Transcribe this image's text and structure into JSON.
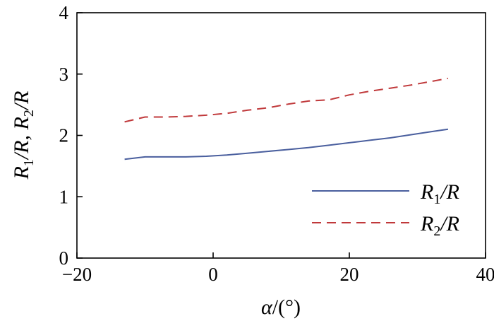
{
  "chart_data": {
    "type": "line",
    "xlabel": "α/(°)",
    "ylabel": "R1/R, R2/R",
    "xlim": [
      -20,
      40
    ],
    "ylim": [
      0,
      4
    ],
    "x_ticks": [
      -20,
      0,
      20,
      40
    ],
    "y_ticks": [
      0,
      1,
      2,
      3,
      4
    ],
    "x_tick_labels": [
      "−20",
      "0",
      "20",
      "40"
    ],
    "y_tick_labels": [
      "0",
      "1",
      "2",
      "3",
      "4"
    ],
    "grid": false,
    "legend_position": "bottom-right",
    "series": [
      {
        "name": "R1/R",
        "color": "#4a5f9e",
        "line_style": "solid",
        "x": [
          -13,
          -10,
          -7,
          -4,
          -1,
          2,
          5,
          8,
          11,
          14,
          17,
          20,
          23,
          26,
          29,
          32,
          34.5
        ],
        "y": [
          1.61,
          1.65,
          1.65,
          1.65,
          1.66,
          1.68,
          1.71,
          1.74,
          1.77,
          1.8,
          1.84,
          1.88,
          1.92,
          1.96,
          2.01,
          2.06,
          2.1
        ]
      },
      {
        "name": "R2/R",
        "color": "#c0393b",
        "line_style": "dashed",
        "x": [
          -13,
          -10,
          -7,
          -4,
          -1,
          2,
          5,
          8,
          11,
          14,
          17,
          20,
          23,
          26,
          29,
          32,
          34.5
        ],
        "y": [
          2.22,
          2.3,
          2.3,
          2.31,
          2.33,
          2.36,
          2.41,
          2.45,
          2.51,
          2.56,
          2.58,
          2.66,
          2.72,
          2.77,
          2.82,
          2.88,
          2.93
        ]
      }
    ]
  }
}
